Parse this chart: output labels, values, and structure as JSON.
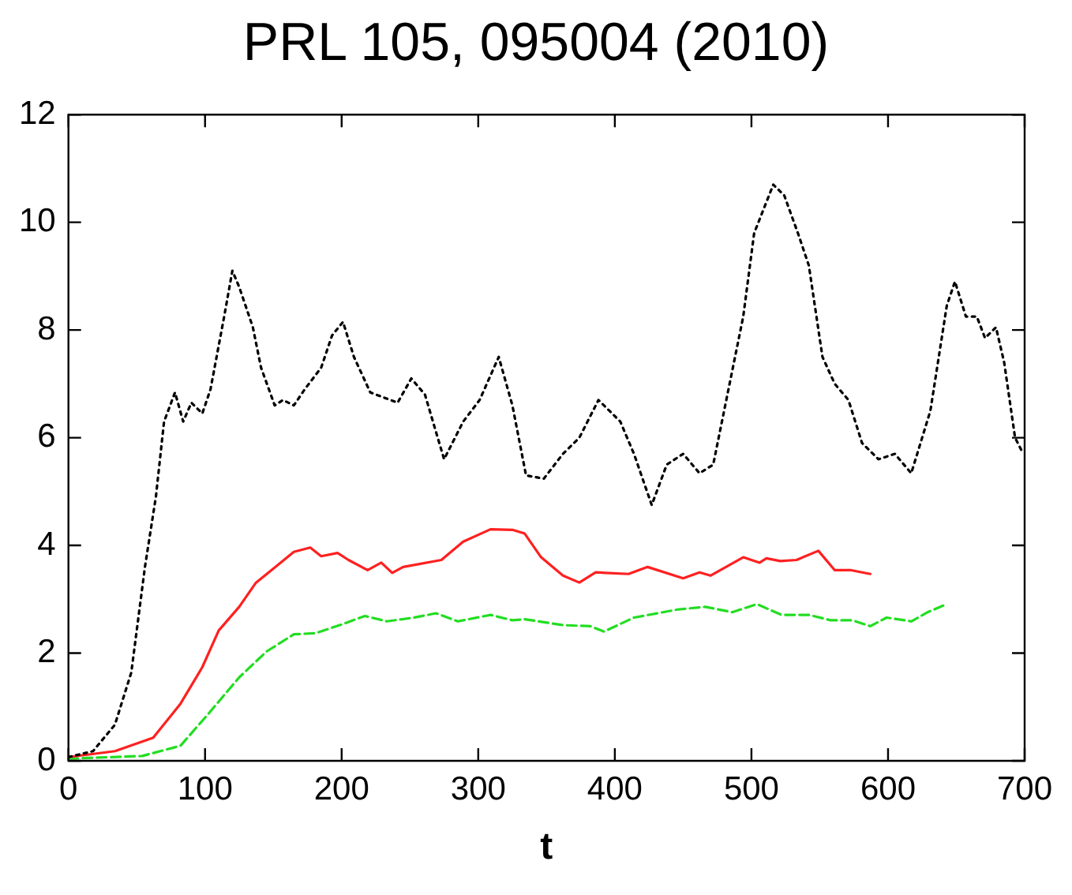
{
  "chart_data": {
    "type": "line",
    "title": "PRL 105, 095004 (2010)",
    "xlabel": "t",
    "xlim": [
      0,
      700
    ],
    "xticks": [
      0,
      100,
      200,
      300,
      400,
      500,
      600,
      700
    ],
    "ylim": [
      0,
      12
    ],
    "yticks": [
      0,
      2,
      4,
      6,
      8,
      10,
      12
    ],
    "grid": false,
    "legend": false,
    "marker": "none",
    "series": [
      {
        "color": "#000000",
        "line_style": "dotted",
        "x": [
          0,
          18,
          34,
          46,
          56,
          64,
          70,
          78,
          84,
          90,
          98,
          104,
          114,
          120,
          125,
          135,
          141,
          151,
          157,
          165,
          173,
          185,
          193,
          201,
          209,
          221,
          241,
          251,
          261,
          275,
          289,
          301,
          315,
          325,
          335,
          348,
          362,
          374,
          388,
          394,
          404,
          414,
          427,
          438,
          450,
          462,
          472,
          484,
          494,
          502,
          516,
          524,
          534,
          542,
          552,
          561,
          571,
          581,
          593,
          605,
          617,
          631,
          643,
          649,
          657,
          665,
          671,
          679,
          685,
          693,
          699
        ],
        "values": [
          0.07,
          0.18,
          0.67,
          1.64,
          3.6,
          4.9,
          6.3,
          6.84,
          6.3,
          6.65,
          6.45,
          6.9,
          8.25,
          9.1,
          8.8,
          8.05,
          7.3,
          6.6,
          6.7,
          6.6,
          6.9,
          7.3,
          7.9,
          8.15,
          7.5,
          6.84,
          6.65,
          7.1,
          6.8,
          5.6,
          6.3,
          6.7,
          7.5,
          6.6,
          5.3,
          5.24,
          5.7,
          6.0,
          6.7,
          6.55,
          6.3,
          5.7,
          4.75,
          5.5,
          5.7,
          5.34,
          5.5,
          7.0,
          8.25,
          9.8,
          10.7,
          10.5,
          9.8,
          9.2,
          7.5,
          7.0,
          6.7,
          5.9,
          5.6,
          5.7,
          5.34,
          6.5,
          8.45,
          8.9,
          8.25,
          8.25,
          7.85,
          8.05,
          7.4,
          6.0,
          5.7
        ]
      },
      {
        "color": "#ff2020",
        "line_style": "solid",
        "x": [
          0,
          34,
          62,
          82,
          98,
          110,
          125,
          137,
          153,
          165,
          177,
          185,
          197,
          205,
          219,
          229,
          237,
          245,
          273,
          289,
          309,
          325,
          334,
          346,
          362,
          374,
          386,
          410,
          424,
          450,
          462,
          470,
          494,
          506,
          511,
          521,
          533,
          549,
          561,
          573,
          587
        ],
        "values": [
          0.07,
          0.18,
          0.43,
          1.06,
          1.74,
          2.42,
          2.86,
          3.3,
          3.63,
          3.88,
          3.96,
          3.8,
          3.86,
          3.73,
          3.54,
          3.68,
          3.49,
          3.6,
          3.73,
          4.07,
          4.3,
          4.29,
          4.22,
          3.78,
          3.44,
          3.31,
          3.5,
          3.47,
          3.6,
          3.39,
          3.5,
          3.44,
          3.78,
          3.68,
          3.76,
          3.71,
          3.73,
          3.9,
          3.54,
          3.54,
          3.47
        ]
      },
      {
        "color": "#22dd22",
        "line_style": "dashed",
        "x": [
          0,
          54,
          82,
          102,
          125,
          145,
          165,
          181,
          201,
          217,
          233,
          253,
          269,
          285,
          309,
          325,
          334,
          362,
          382,
          392,
          414,
          446,
          466,
          486,
          504,
          522,
          542,
          558,
          574,
          587,
          599,
          617,
          629,
          643
        ],
        "values": [
          0.04,
          0.09,
          0.28,
          0.86,
          1.55,
          2.03,
          2.35,
          2.37,
          2.54,
          2.69,
          2.59,
          2.66,
          2.74,
          2.59,
          2.71,
          2.61,
          2.63,
          2.52,
          2.5,
          2.4,
          2.66,
          2.81,
          2.86,
          2.76,
          2.91,
          2.71,
          2.71,
          2.61,
          2.61,
          2.5,
          2.66,
          2.59,
          2.76,
          2.91
        ]
      }
    ]
  }
}
